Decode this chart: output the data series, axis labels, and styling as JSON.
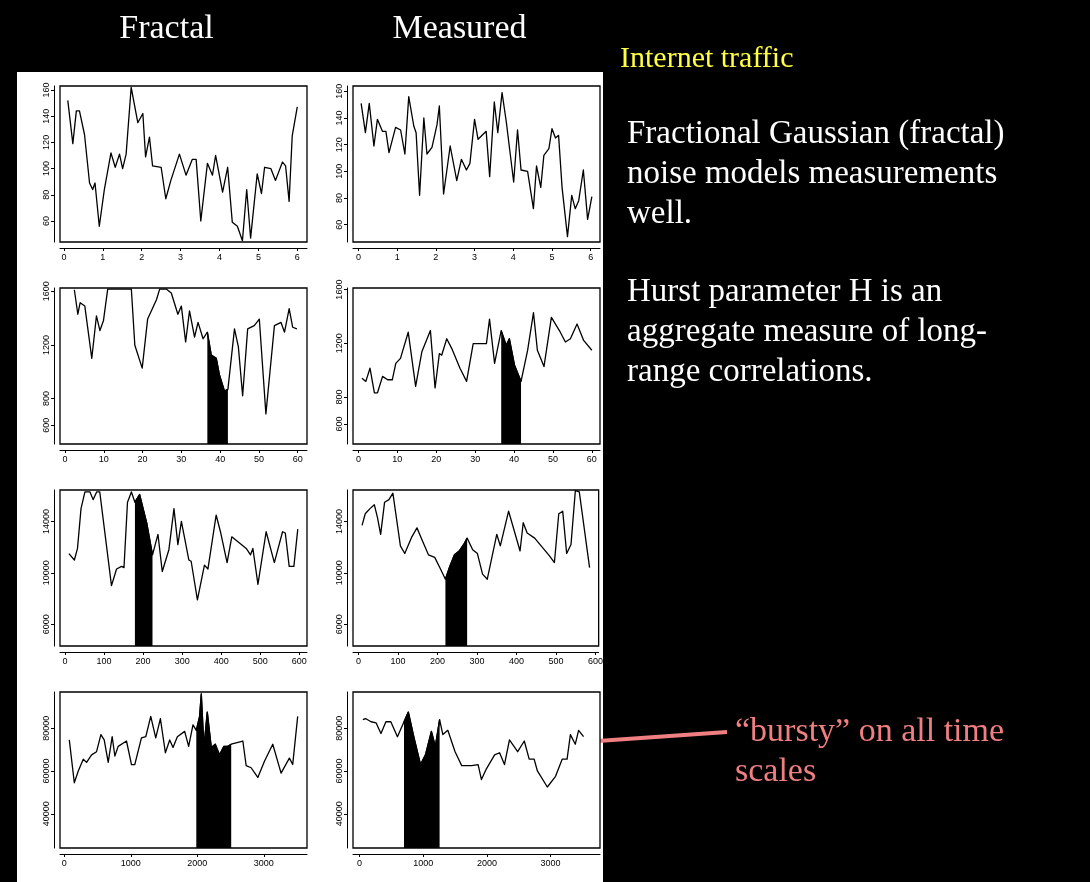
{
  "chart_data": [
    {
      "type": "line",
      "title": "Fractal",
      "xlim": [
        -0.1,
        6.25
      ],
      "ylim": [
        44,
        163
      ],
      "xticks": [
        0,
        1,
        2,
        3,
        4,
        5,
        6
      ],
      "yticks": [
        60,
        80,
        100,
        120,
        140,
        160
      ],
      "series": [
        {
          "color": "#000000",
          "x": [
            0.1,
            0.23,
            0.32,
            0.4,
            0.53,
            0.66,
            0.74,
            0.8,
            0.91,
            1.04,
            1.21,
            1.32,
            1.43,
            1.51,
            1.6,
            1.73,
            1.9,
            2.03,
            2.1,
            2.2,
            2.28,
            2.5,
            2.62,
            2.75,
            2.97,
            3.14,
            3.3,
            3.4,
            3.52,
            3.69,
            3.82,
            3.9,
            4.08,
            4.21,
            4.33,
            4.46,
            4.59,
            4.7,
            4.8,
            4.97,
            5.08,
            5.16,
            5.32,
            5.44,
            5.62,
            5.7,
            5.79,
            5.87,
            6.0
          ],
          "values": [
            152,
            119,
            144,
            144,
            126,
            89,
            84,
            89,
            56,
            84,
            112,
            101,
            111,
            100,
            111,
            162,
            135,
            142,
            109,
            124,
            102,
            101,
            77,
            91,
            111,
            95,
            107,
            107,
            60,
            104,
            95,
            110,
            82,
            101,
            59,
            56,
            45,
            84,
            47,
            96,
            81,
            101,
            100,
            91,
            105,
            102,
            75,
            125,
            147
          ]
        }
      ]
    },
    {
      "type": "line",
      "title": "Measured",
      "xlim": [
        -0.14,
        6.24
      ],
      "ylim": [
        47,
        164
      ],
      "xticks": [
        0,
        1,
        2,
        3,
        4,
        5,
        6
      ],
      "yticks": [
        60,
        80,
        100,
        120,
        140,
        160
      ],
      "series": [
        {
          "color": "#000000",
          "x": [
            0.07,
            0.18,
            0.28,
            0.4,
            0.49,
            0.62,
            0.71,
            0.79,
            0.96,
            1.09,
            1.2,
            1.3,
            1.43,
            1.49,
            1.58,
            1.69,
            1.77,
            1.9,
            2.03,
            2.09,
            2.2,
            2.37,
            2.54,
            2.66,
            2.79,
            2.88,
            3.0,
            3.09,
            3.3,
            3.39,
            3.51,
            3.6,
            3.71,
            3.82,
            4.01,
            4.11,
            4.2,
            4.37,
            4.52,
            4.6,
            4.71,
            4.79,
            4.92,
            5.0,
            5.09,
            5.17,
            5.26,
            5.4,
            5.51,
            5.6,
            5.69,
            5.81,
            5.92,
            6.03
          ],
          "values": [
            151,
            129,
            151,
            119,
            139,
            130,
            130,
            114,
            133,
            131,
            113,
            156,
            134,
            129,
            82,
            140,
            113,
            118,
            135,
            149,
            83,
            119,
            93,
            109,
            101,
            106,
            139,
            124,
            130,
            96,
            152,
            129,
            159,
            137,
            92,
            131,
            101,
            100,
            72,
            104,
            88,
            112,
            117,
            132,
            125,
            127,
            88,
            51,
            82,
            72,
            78,
            101,
            64,
            81
          ]
        }
      ]
    },
    {
      "type": "line",
      "xlim": [
        -1.3,
        62.4
      ],
      "ylim": [
        460,
        1625
      ],
      "xticks": [
        0,
        10,
        20,
        30,
        40,
        50,
        60
      ],
      "yticks": [
        600,
        800,
        1200,
        1600
      ],
      "series": [
        {
          "color": "#000000",
          "x": [
            2.4,
            3.3,
            3.9,
            5.1,
            6.9,
            8.1,
            9.0,
            9.9,
            11.0,
            17.1,
            18.0,
            19.9,
            21.3,
            23.6,
            24.4,
            26.1,
            27.4,
            29.1,
            30.0,
            31.1,
            32.1,
            33.4,
            34.3,
            35.6,
            36.7,
            37.7,
            39.0,
            39.8,
            41.1,
            42.0,
            43.7,
            44.7,
            45.8,
            47.1,
            48.8,
            50.1,
            51.8,
            54.0,
            55.7,
            56.6,
            57.8,
            58.7,
            59.8
          ],
          "values": [
            1612,
            1429,
            1515,
            1490,
            1100,
            1417,
            1307,
            1380,
            1617,
            1617,
            1198,
            1027,
            1393,
            1539,
            1617,
            1617,
            1588,
            1429,
            1490,
            1222,
            1454,
            1259,
            1368,
            1246,
            1295,
            1124,
            1100,
            978,
            856,
            868,
            1320,
            1185,
            820,
            1320,
            1344,
            1393,
            685,
            1344,
            1368,
            1295,
            1471,
            1332,
            1320
          ]
        },
        {
          "type": "area",
          "color": "#000000",
          "x": [
            36.7,
            37.7,
            39.0,
            39.8,
            41.1,
            42.0
          ],
          "values": [
            1295,
            1124,
            1100,
            978,
            856,
            868
          ]
        }
      ]
    },
    {
      "type": "line",
      "xlim": [
        -1.4,
        62.1
      ],
      "ylim": [
        451,
        1612
      ],
      "xticks": [
        0,
        10,
        20,
        30,
        40,
        50,
        60
      ],
      "yticks": [
        600,
        800,
        1200,
        1600
      ],
      "series": [
        {
          "color": "#000000",
          "x": [
            0.9,
            1.9,
            2.97,
            4.1,
            4.9,
            6.2,
            7.5,
            8.7,
            9.6,
            10.8,
            12.8,
            14.7,
            16.3,
            18.5,
            19.7,
            20.8,
            21.4,
            22.7,
            24.0,
            26.1,
            27.8,
            29.5,
            31.2,
            32.9,
            33.7,
            35.0,
            36.7,
            38.0,
            38.8,
            40.1,
            41.8,
            43.5,
            45.0,
            46.0,
            47.7,
            49.6,
            51.9,
            53.2,
            54.5,
            56.2,
            57.9,
            60.0
          ],
          "values": [
            941,
            917,
            1015,
            832,
            832,
            954,
            929,
            929,
            1051,
            1088,
            1283,
            880,
            1137,
            1295,
            868,
            1124,
            1112,
            1234,
            1161,
            1015,
            917,
            1198,
            1198,
            1198,
            1380,
            1051,
            1295,
            1185,
            1234,
            1039,
            917,
            1149,
            1429,
            1149,
            1027,
            1393,
            1283,
            1210,
            1234,
            1344,
            1222,
            1149
          ]
        },
        {
          "type": "area",
          "color": "#000000",
          "x": [
            36.7,
            38.0,
            38.8,
            40.1,
            41.8
          ],
          "values": [
            1295,
            1185,
            1234,
            1039,
            917
          ]
        }
      ]
    },
    {
      "type": "line",
      "xlim": [
        -12.8,
        619.6
      ],
      "ylim": [
        4300,
        16450
      ],
      "xticks": [
        0,
        100,
        200,
        300,
        400,
        500,
        600
      ],
      "yticks": [
        6000,
        10000,
        14000
      ],
      "series": [
        {
          "color": "#000000",
          "x": [
            10,
            24,
            32,
            41,
            51,
            64,
            72,
            81,
            89,
            119,
            132,
            145,
            151,
            160,
            170,
            179,
            191,
            209,
            224,
            238,
            249,
            266,
            279,
            289,
            298,
            317,
            323,
            339,
            357,
            366,
            387,
            398,
            415,
            427,
            464,
            475,
            481,
            494,
            515,
            536,
            557,
            564,
            574,
            586,
            596
          ],
          "values": [
            11500,
            11000,
            11900,
            15000,
            16300,
            16300,
            15700,
            16300,
            16300,
            9000,
            10300,
            10500,
            10400,
            15500,
            16300,
            15500,
            16100,
            13900,
            11400,
            13000,
            10100,
            11800,
            15000,
            12200,
            14000,
            11000,
            10900,
            7900,
            10600,
            10300,
            14500,
            13200,
            10800,
            12800,
            11900,
            11400,
            11900,
            9100,
            13200,
            10800,
            13200,
            13100,
            10500,
            10500,
            13400
          ]
        },
        {
          "type": "area",
          "color": "#000000",
          "x": [
            179,
            191,
            209,
            224
          ],
          "values": [
            15500,
            16100,
            13900,
            11400
          ]
        }
      ]
    },
    {
      "type": "line",
      "xlim": [
        -14,
        608
      ],
      "ylim": [
        4300,
        16450
      ],
      "xticks": [
        0,
        100,
        200,
        300,
        400,
        500,
        600
      ],
      "yticks": [
        6000,
        10000,
        14000
      ],
      "series": [
        {
          "color": "#000000",
          "x": [
            9,
            17,
            29,
            40,
            48,
            56,
            66,
            77,
            87,
            106,
            117,
            135,
            148,
            159,
            177,
            193,
            206,
            220,
            231,
            243,
            255,
            268,
            275,
            289,
            301,
            314,
            326,
            350,
            359,
            380,
            409,
            417,
            427,
            446,
            484,
            496,
            507,
            517,
            527,
            538,
            549,
            559,
            585
          ],
          "values": [
            13700,
            14600,
            15000,
            15300,
            14300,
            13000,
            15500,
            15700,
            16200,
            12100,
            11500,
            12800,
            13500,
            12700,
            11400,
            11200,
            10400,
            9500,
            10500,
            11400,
            11700,
            12300,
            12700,
            11800,
            11500,
            9900,
            9500,
            13000,
            12100,
            14800,
            11700,
            13900,
            13100,
            12700,
            11300,
            10800,
            14600,
            14800,
            11500,
            12200,
            16400,
            16300,
            10400
          ]
        },
        {
          "type": "area",
          "color": "#000000",
          "x": [
            220,
            231,
            243,
            255,
            268,
            275
          ],
          "values": [
            9500,
            10500,
            11400,
            11700,
            12300,
            12700
          ]
        }
      ]
    },
    {
      "type": "line",
      "xlim": [
        -65,
        3650
      ],
      "ylim": [
        24000,
        96900
      ],
      "xticks": [
        0,
        1000,
        2000,
        3000
      ],
      "yticks": [
        40000,
        60000,
        80000
      ],
      "series": [
        {
          "color": "#000000",
          "x": [
            75,
            150,
            210,
            285,
            335,
            410,
            485,
            550,
            600,
            660,
            720,
            760,
            810,
            935,
            1010,
            1060,
            1160,
            1225,
            1300,
            1375,
            1445,
            1520,
            1585,
            1635,
            1700,
            1810,
            1870,
            1935,
            1985,
            2035,
            2060,
            2100,
            2150,
            2210,
            2270,
            2335,
            2400,
            2460,
            2510,
            2685,
            2735,
            2810,
            2910,
            3010,
            3135,
            3260,
            3385,
            3435,
            3510
          ],
          "values": [
            74500,
            54500,
            60000,
            65500,
            64000,
            67500,
            69000,
            77000,
            74500,
            64000,
            76000,
            67000,
            71500,
            74000,
            63000,
            63000,
            75500,
            76000,
            85500,
            75500,
            84500,
            68500,
            74500,
            71000,
            76000,
            78500,
            71500,
            81500,
            79000,
            85500,
            96000,
            71000,
            87500,
            71000,
            72500,
            67500,
            71500,
            71500,
            72500,
            74000,
            62500,
            61500,
            57000,
            64500,
            72500,
            59000,
            66000,
            63000,
            85500
          ]
        },
        {
          "type": "area",
          "color": "#000000",
          "x": [
            1985,
            2035,
            2060,
            2100,
            2150,
            2210,
            2270,
            2335,
            2400,
            2460,
            2510
          ],
          "values": [
            79000,
            85500,
            96000,
            71000,
            87500,
            71000,
            72500,
            67500,
            71500,
            71500,
            72500
          ]
        }
      ]
    },
    {
      "type": "line",
      "xlim": [
        -103,
        3776
      ],
      "ylim": [
        24000,
        96900
      ],
      "xticks": [
        0,
        1000,
        2000,
        3000
      ],
      "yticks": [
        40000,
        60000,
        80000
      ],
      "annotations": [
        "“bursty” on all time scales"
      ],
      "series": [
        {
          "color": "#000000",
          "x": [
            52,
            93,
            181,
            259,
            336,
            414,
            491,
            595,
            698,
            766,
            851,
            957,
            1035,
            1128,
            1190,
            1257,
            1308,
            1386,
            1500,
            1604,
            1759,
            1862,
            1914,
            1992,
            2121,
            2199,
            2276,
            2354,
            2483,
            2587,
            2664,
            2742,
            2793,
            2949,
            3078,
            3182,
            3259,
            3311,
            3388,
            3440,
            3518
          ],
          "values": [
            84000,
            84500,
            83000,
            82500,
            77500,
            83000,
            83000,
            76000,
            83000,
            87500,
            76000,
            63000,
            67500,
            78500,
            71500,
            84000,
            77000,
            79000,
            69000,
            62500,
            62500,
            63000,
            56000,
            61000,
            67500,
            68500,
            63000,
            74500,
            69000,
            74000,
            65500,
            65500,
            60000,
            52500,
            57500,
            65500,
            65500,
            77000,
            72500,
            79000,
            76000
          ]
        },
        {
          "type": "area",
          "color": "#000000",
          "x": [
            698,
            766,
            851,
            957,
            1035,
            1128,
            1190,
            1257
          ],
          "values": [
            83000,
            87500,
            76000,
            63000,
            67500,
            78500,
            71500,
            84000
          ]
        }
      ]
    },
    {
      "type": "other",
      "title": "Internet traffic",
      "annotations": [
        "Fractional Gaussian (fractal) noise models measurements well.",
        "Hurst parameter H is an aggregate measure of long-range correlations."
      ]
    }
  ]
}
